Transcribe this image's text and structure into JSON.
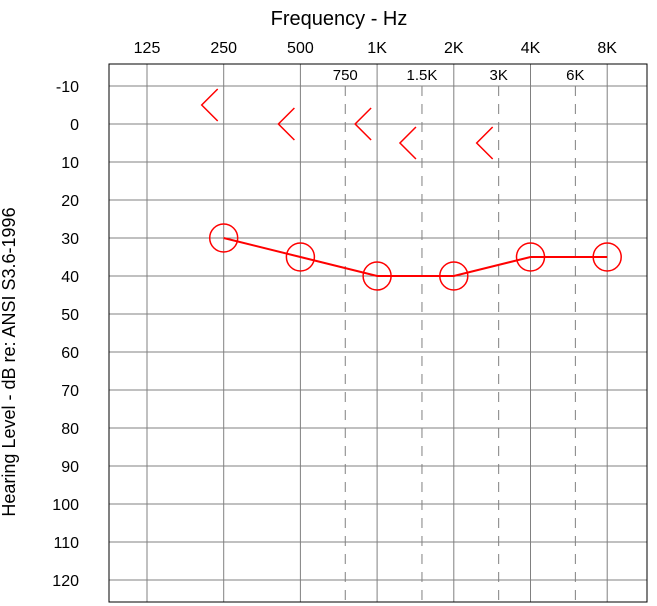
{
  "chart_data": {
    "type": "scatter",
    "title": "Frequency - Hz",
    "xlabel": "Frequency - Hz",
    "ylabel": "Hearing Level - dB   re: ANSI S3.6-1996",
    "x_scale": "log2",
    "x_ticks_major": [
      "125",
      "250",
      "500",
      "1K",
      "2K",
      "4K",
      "8K"
    ],
    "x_ticks_major_values": [
      125,
      250,
      500,
      1000,
      2000,
      4000,
      8000
    ],
    "x_ticks_inter": [
      "750",
      "1.5K",
      "3K",
      "6K"
    ],
    "x_ticks_inter_values": [
      750,
      1500,
      3000,
      6000
    ],
    "y_ticks": [
      "-10",
      "0",
      "10",
      "20",
      "30",
      "40",
      "50",
      "60",
      "70",
      "80",
      "90",
      "100",
      "110",
      "120"
    ],
    "ylim": [
      -10,
      120
    ],
    "y_inverted": true,
    "grid": true,
    "colors": {
      "data": "#ff0000",
      "grid": "#808080",
      "frame": "#000000"
    },
    "series": [
      {
        "symbol": "circle",
        "connected": true,
        "x": [
          250,
          500,
          1000,
          2000,
          4000,
          8000
        ],
        "y": [
          30,
          35,
          40,
          40,
          35,
          35
        ]
      },
      {
        "symbol": "less-than",
        "connected": false,
        "x": [
          250,
          500,
          1000,
          1500,
          3000
        ],
        "y": [
          -5,
          0,
          0,
          5,
          5
        ]
      }
    ]
  }
}
